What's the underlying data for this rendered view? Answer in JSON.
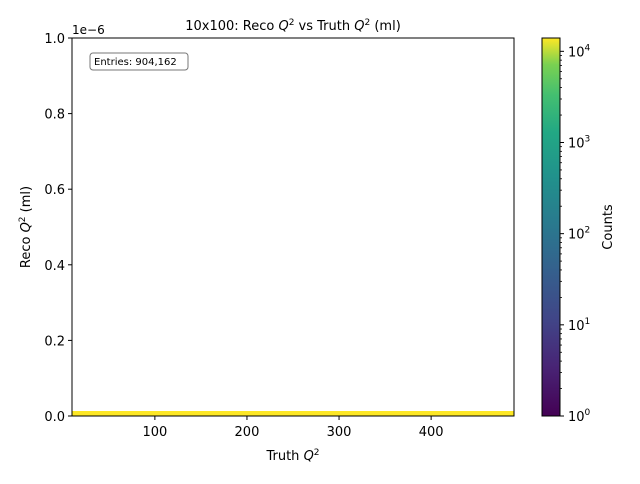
{
  "chart_data": {
    "type": "heatmap",
    "title_prefix": "10x100: Reco ",
    "title_mid": " vs Truth ",
    "title_suffix": " (ml)",
    "q2_symbol": "Q",
    "q2_power": "2",
    "xlabel_prefix": "Truth ",
    "ylabel_prefix": "Reco ",
    "ylabel_suffix": " (ml)",
    "xlim": [
      10,
      490
    ],
    "ylim": [
      0,
      1e-06
    ],
    "y_scale_label": "1e−6",
    "x_ticks": [
      "100",
      "200",
      "300",
      "400"
    ],
    "y_ticks": [
      "0.0",
      "0.2",
      "0.4",
      "0.6",
      "0.8",
      "1.0"
    ],
    "band": {
      "x_start": 10,
      "x_end": 490,
      "y_start": 0,
      "y_end": 1e-08,
      "count": 10000
    },
    "stats_text": "Entries: 904,162",
    "colorbar": {
      "label": "Counts",
      "scale": "log",
      "range": [
        1,
        14000
      ],
      "tick_base": "10",
      "tick_exponents": [
        "0",
        "1",
        "2",
        "3",
        "4"
      ],
      "colormap": "viridis"
    }
  }
}
